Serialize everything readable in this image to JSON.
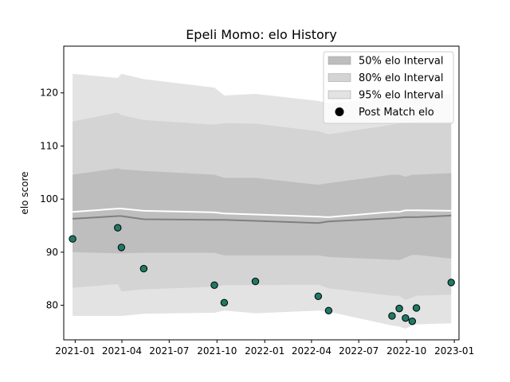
{
  "chart_data": {
    "type": "line",
    "title": "Epeli Momo: elo History",
    "xlabel": "",
    "ylabel": "elo score",
    "x_range": [
      "2020-12-10",
      "2023-01-10"
    ],
    "ylim": [
      73.5,
      128.8
    ],
    "grid": false,
    "legend_position": "top-right",
    "x_ticks": [
      {
        "date": "2021-01-01",
        "label": "2021-01"
      },
      {
        "date": "2021-04-01",
        "label": "2021-04"
      },
      {
        "date": "2021-07-01",
        "label": "2021-07"
      },
      {
        "date": "2021-10-01",
        "label": "2021-10"
      },
      {
        "date": "2022-01-01",
        "label": "2022-01"
      },
      {
        "date": "2022-04-01",
        "label": "2022-04"
      },
      {
        "date": "2022-07-01",
        "label": "2022-07"
      },
      {
        "date": "2022-10-01",
        "label": "2022-10"
      },
      {
        "date": "2023-01-01",
        "label": "2023-01"
      }
    ],
    "y_ticks": [
      80,
      90,
      100,
      110,
      120
    ],
    "x": [
      "2020-12-27",
      "2021-03-24",
      "2021-03-31",
      "2021-05-13",
      "2021-09-26",
      "2021-10-15",
      "2021-12-14",
      "2022-04-14",
      "2022-05-04",
      "2022-09-03",
      "2022-09-17",
      "2022-09-29",
      "2022-10-12",
      "2022-10-20",
      "2022-12-26"
    ],
    "series": [
      {
        "name": "95% elo Interval",
        "kind": "band",
        "color": "#e3e3e3",
        "lower": [
          78.0,
          78.0,
          78.0,
          78.4,
          78.6,
          79.0,
          78.5,
          79.0,
          78.8,
          76.2,
          76.0,
          75.6,
          76.2,
          76.4,
          76.6
        ],
        "upper": [
          123.6,
          122.8,
          123.6,
          122.6,
          121.0,
          119.5,
          119.8,
          118.5,
          118.0,
          119.2,
          119.4,
          119.2,
          119.6,
          119.6,
          119.8
        ]
      },
      {
        "name": "80% elo Interval",
        "kind": "band",
        "color": "#d4d4d4",
        "lower": [
          83.3,
          84.0,
          82.6,
          83.0,
          83.5,
          83.8,
          83.8,
          83.9,
          83.2,
          81.8,
          81.8,
          81.0,
          81.5,
          81.8,
          82.0
        ],
        "upper": [
          114.6,
          116.3,
          115.8,
          114.9,
          114.0,
          114.3,
          114.2,
          112.8,
          112.2,
          114.0,
          114.2,
          114.3,
          114.5,
          114.6,
          114.7
        ]
      },
      {
        "name": "50% elo Interval",
        "kind": "band",
        "color": "#bebebe",
        "lower": [
          90.0,
          89.8,
          89.8,
          89.9,
          89.9,
          89.4,
          89.4,
          89.4,
          89.1,
          88.6,
          88.5,
          89.0,
          89.5,
          89.5,
          88.8
        ],
        "upper": [
          104.6,
          105.8,
          105.6,
          105.3,
          104.6,
          104.0,
          104.0,
          102.7,
          103.0,
          104.6,
          104.6,
          104.2,
          104.6,
          104.6,
          104.9
        ]
      },
      {
        "name": "",
        "kind": "line",
        "color": "#ffffff",
        "values": [
          97.6,
          98.2,
          98.2,
          97.8,
          97.5,
          97.3,
          97.1,
          96.7,
          96.6,
          97.6,
          97.6,
          97.9,
          97.9,
          97.9,
          97.8
        ]
      },
      {
        "name": "",
        "kind": "line",
        "color": "#808080",
        "values": [
          96.3,
          96.8,
          96.8,
          96.2,
          96.1,
          96.1,
          95.9,
          95.5,
          95.8,
          96.4,
          96.5,
          96.6,
          96.6,
          96.6,
          96.9
        ]
      },
      {
        "name": "Post Match elo",
        "kind": "scatter",
        "color": "#1d7a66",
        "values": [
          92.5,
          94.6,
          90.9,
          86.9,
          83.8,
          80.5,
          84.5,
          81.7,
          79.0,
          78.0,
          79.4,
          77.6,
          77.0,
          79.5,
          84.3
        ]
      }
    ]
  }
}
